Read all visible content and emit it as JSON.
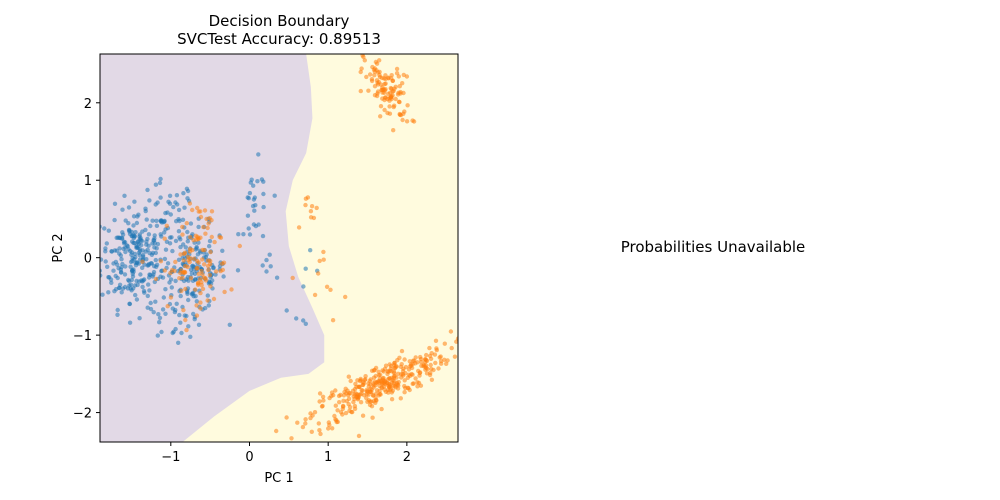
{
  "chart_data": [
    {
      "type": "scatter",
      "title": "Decision Boundary",
      "subtitle": "SVCTest Accuracy: 0.89513",
      "xlabel": "PC 1",
      "ylabel": "PC 2",
      "xlim": [
        -1.9,
        2.65
      ],
      "ylim": [
        -2.38,
        2.63
      ],
      "xticks": [
        -1,
        0,
        1,
        2
      ],
      "xtick_labels": [
        "−1",
        "0",
        "1",
        "2"
      ],
      "yticks": [
        -2,
        -1,
        0,
        1,
        2
      ],
      "ytick_labels": [
        "−2",
        "−1",
        "0",
        "1",
        "2"
      ],
      "grid": false,
      "legend": "none",
      "regions": [
        {
          "class": 0,
          "color": "#e2d9e6"
        },
        {
          "class": 1,
          "color": "#fffbde"
        }
      ],
      "boundary": [
        [
          0.72,
          2.63
        ],
        [
          0.78,
          2.2
        ],
        [
          0.8,
          1.8
        ],
        [
          0.72,
          1.35
        ],
        [
          0.55,
          1.0
        ],
        [
          0.46,
          0.6
        ],
        [
          0.5,
          0.15
        ],
        [
          0.62,
          -0.25
        ],
        [
          0.8,
          -0.65
        ],
        [
          0.95,
          -1.0
        ],
        [
          0.95,
          -1.35
        ],
        [
          0.75,
          -1.5
        ],
        [
          0.4,
          -1.55
        ],
        [
          0.0,
          -1.72
        ],
        [
          -0.45,
          -2.05
        ],
        [
          -0.85,
          -2.38
        ]
      ],
      "series": [
        {
          "class": 0,
          "color": "#1f77b4",
          "clusters": [
            {
              "cx": -1.45,
              "cy": 0.0,
              "sx": 0.22,
              "sy": 0.32,
              "n": 240
            },
            {
              "cx": -0.7,
              "cy": -0.15,
              "sx": 0.2,
              "sy": 0.28,
              "n": 150
            },
            {
              "cx": -1.05,
              "cy": 0.55,
              "sx": 0.18,
              "sy": 0.22,
              "n": 40
            },
            {
              "cx": 0.08,
              "cy": 0.6,
              "sx": 0.1,
              "sy": 0.3,
              "n": 28
            },
            {
              "cx": -0.95,
              "cy": -0.75,
              "sx": 0.2,
              "sy": 0.15,
              "n": 25
            },
            {
              "cx": 0.7,
              "cy": -0.5,
              "sx": 0.12,
              "sy": 0.25,
              "n": 8
            },
            {
              "cx": 0.3,
              "cy": -0.05,
              "sx": 0.12,
              "sy": 0.12,
              "n": 6
            }
          ]
        },
        {
          "class": 1,
          "color": "#ff7f0e",
          "clusters": [
            {
              "cx": 1.65,
              "cy": -1.65,
              "sx": 0.45,
              "sy": 0.25,
              "rho": 0.85,
              "n": 340
            },
            {
              "cx": 1.75,
              "cy": 2.15,
              "sx": 0.15,
              "sy": 0.2,
              "rho": -0.5,
              "n": 110
            },
            {
              "cx": -0.7,
              "cy": -0.15,
              "sx": 0.22,
              "sy": 0.25,
              "n": 95
            },
            {
              "cx": -0.55,
              "cy": 0.45,
              "sx": 0.15,
              "sy": 0.12,
              "n": 20
            },
            {
              "cx": 0.8,
              "cy": 0.6,
              "sx": 0.06,
              "sy": 0.12,
              "n": 9
            },
            {
              "cx": 1.0,
              "cy": -0.3,
              "sx": 0.12,
              "sy": 0.25,
              "n": 10
            }
          ]
        }
      ]
    },
    {
      "type": "text",
      "message": "Probabilities Unavailable"
    }
  ]
}
